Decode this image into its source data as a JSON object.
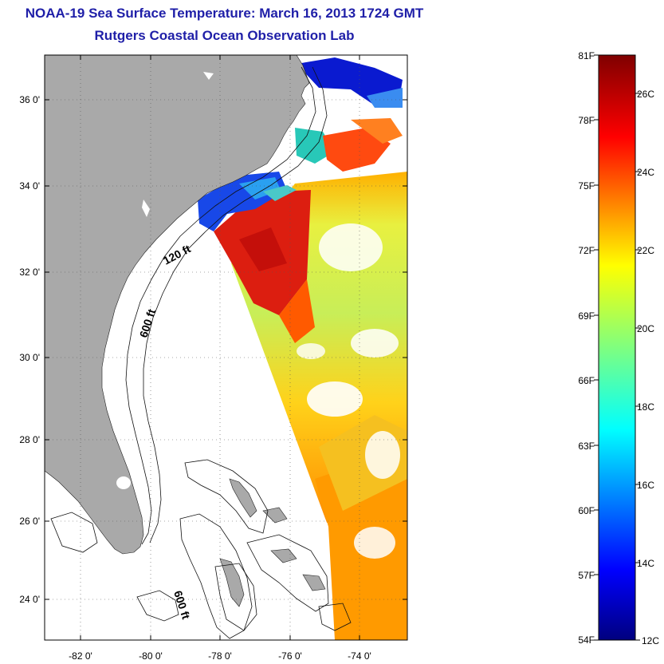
{
  "title": "NOAA-19 Sea Surface Temperature:  March 16, 2013 1724 GMT",
  "subtitle": "Rutgers Coastal Ocean Observation Lab",
  "lat_ticks": [
    "36 0'",
    "34 0'",
    "32 0'",
    "30 0'",
    "28 0'",
    "26 0'",
    "24 0'"
  ],
  "lon_ticks": [
    "-82 0'",
    "-80 0'",
    "-78 0'",
    "-76 0'",
    "-74 0'"
  ],
  "contour_labels": [
    "120 ft",
    "600 ft",
    "600 ft"
  ],
  "colorbar": {
    "fahrenheit_labels": [
      "81F",
      "78F",
      "75F",
      "72F",
      "69F",
      "66F",
      "63F",
      "60F",
      "57F",
      "54F"
    ],
    "celsius_labels": [
      "26C",
      "24C",
      "22C",
      "20C",
      "18C",
      "16C",
      "14C",
      "12C"
    ]
  },
  "colors": {
    "title": "#1f1fa8",
    "land": "#a9a9a9",
    "warm": "#d61a0f",
    "cold": "#0d18c4"
  }
}
